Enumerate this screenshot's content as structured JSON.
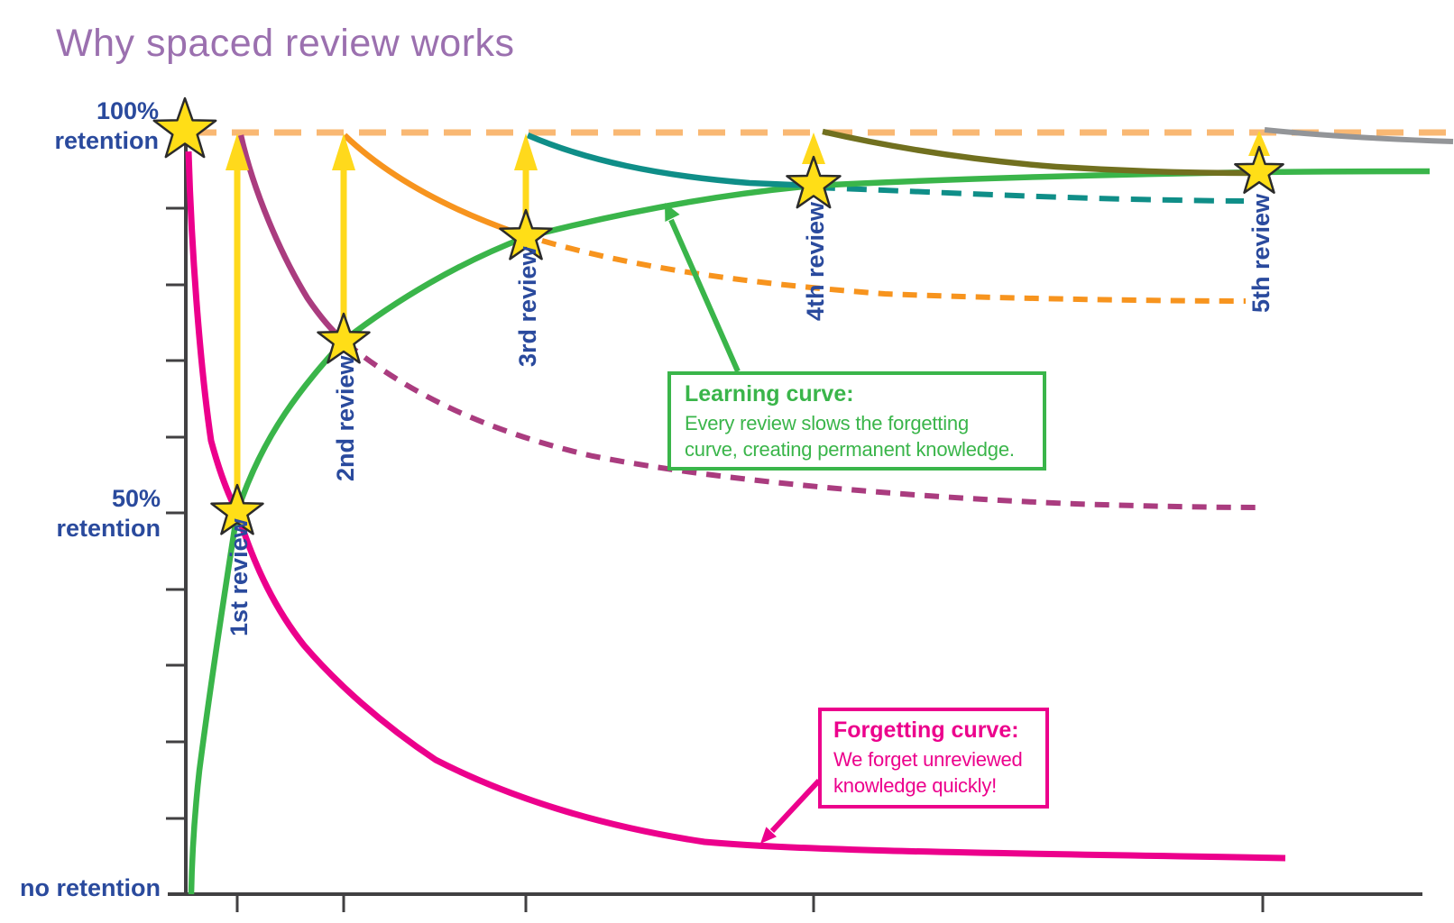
{
  "title": "Why spaced review works",
  "y_axis": {
    "label_100": "100%\nretention",
    "label_50": "50%\nretention",
    "label_0": "no retention"
  },
  "reviews": [
    {
      "label": "1st review",
      "retention_at_review_pct": 50
    },
    {
      "label": "2nd review",
      "retention_at_review_pct": 72
    },
    {
      "label": "3rd review",
      "retention_at_review_pct": 86
    },
    {
      "label": "4th review",
      "retention_at_review_pct": 93
    },
    {
      "label": "5th review",
      "retention_at_review_pct": 95
    }
  ],
  "annotations": {
    "learning": {
      "title": "Learning curve:",
      "body": "Every review slows the forgetting\ncurve, creating permanent knowledge."
    },
    "forgetting": {
      "title": "Forgetting curve:",
      "body": "We forget unreviewed\nknowledge quickly!"
    }
  },
  "colors": {
    "title_purple": "#9B70AF",
    "axis_label_navy": "#2A4A9D",
    "axis_gray": "#414042",
    "forgetting_pink": "#EC008C",
    "learning_green": "#3AB54A",
    "after_1st_maroon": "#AA3C7F",
    "after_2nd_orange": "#F7941E",
    "after_3rd_teal": "#0F8E88",
    "after_4th_olive": "#71701F",
    "after_5th_gray": "#939598",
    "full_retention_dash_peach": "#F9B873",
    "star_yellow": "#FFDE17",
    "star_outline": "#2B2B2B",
    "arrow_yellow": "#FFD91C"
  },
  "chart_data": {
    "type": "line",
    "title": "Why spaced review works",
    "xlabel": "",
    "ylabel": "",
    "ylim_pct": [
      0,
      100
    ],
    "grid": false,
    "y_axis_tick_interval_pct": 10,
    "y_axis_text_labels": [
      "100% retention",
      "50% retention",
      "no retention"
    ],
    "x_axis_ticks": "one unlabeled tick per review; intervals between reviews grow longer",
    "reference_line": {
      "value_pct": 100,
      "style": "dashed",
      "color": "#F9B873"
    },
    "markers": "yellow star at initial learning and at each review point",
    "x_units": "review index (0 = initial learning)",
    "series": [
      {
        "name": "Forgetting curve",
        "color": "#EC008C",
        "line_style": "solid",
        "x": [
          0,
          1,
          2,
          3,
          4,
          5
        ],
        "retention_pct": [
          100,
          50,
          27,
          12,
          6,
          5
        ]
      },
      {
        "name": "Learning curve",
        "color": "#3AB54A",
        "line_style": "solid",
        "x": [
          0,
          1,
          2,
          3,
          4,
          5
        ],
        "retention_pct": [
          0,
          50,
          72,
          86,
          93,
          95
        ]
      },
      {
        "name": "Forgetting after 1st review",
        "color": "#AA3C7F",
        "line_style": "solid to next review, then dashed",
        "x": [
          1,
          2,
          5
        ],
        "retention_pct": [
          100,
          72,
          51
        ]
      },
      {
        "name": "Forgetting after 2nd review",
        "color": "#F7941E",
        "line_style": "solid to next review, then dashed",
        "x": [
          2,
          3,
          5
        ],
        "retention_pct": [
          100,
          86,
          78
        ]
      },
      {
        "name": "Forgetting after 3rd review",
        "color": "#0F8E88",
        "line_style": "solid to next review, then dashed",
        "x": [
          3,
          4,
          5
        ],
        "retention_pct": [
          100,
          93,
          91
        ]
      },
      {
        "name": "Forgetting after 4th review",
        "color": "#71701F",
        "line_style": "solid",
        "x": [
          4,
          5
        ],
        "retention_pct": [
          100,
          95
        ]
      },
      {
        "name": "Forgetting after 5th review",
        "color": "#939598",
        "line_style": "solid",
        "x": [
          5,
          5.5
        ],
        "retention_pct": [
          100,
          99
        ]
      }
    ]
  }
}
